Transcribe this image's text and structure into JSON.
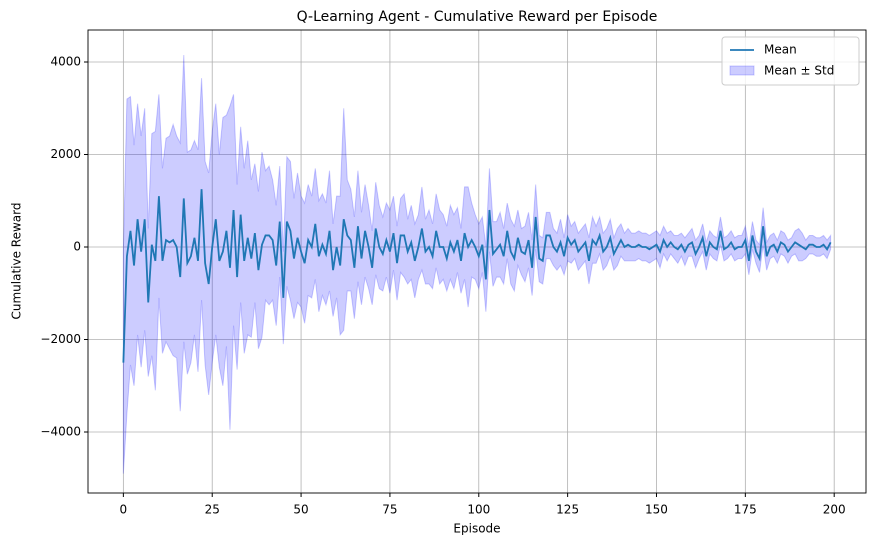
{
  "chart_data": {
    "type": "line",
    "title": "Q-Learning Agent - Cumulative Reward per Episode",
    "x_label": "Episode",
    "y_label": "Cumulative Reward",
    "x": [
      0,
      1,
      2,
      3,
      4,
      5,
      6,
      7,
      8,
      9,
      10,
      11,
      12,
      13,
      14,
      15,
      16,
      17,
      18,
      19,
      20,
      21,
      22,
      23,
      24,
      25,
      26,
      27,
      28,
      29,
      30,
      31,
      32,
      33,
      34,
      35,
      36,
      37,
      38,
      39,
      40,
      41,
      42,
      43,
      44,
      45,
      46,
      47,
      48,
      49,
      50,
      51,
      52,
      53,
      54,
      55,
      56,
      57,
      58,
      59,
      60,
      61,
      62,
      63,
      64,
      65,
      66,
      67,
      68,
      69,
      70,
      71,
      72,
      73,
      74,
      75,
      76,
      77,
      78,
      79,
      80,
      81,
      82,
      83,
      84,
      85,
      86,
      87,
      88,
      89,
      90,
      91,
      92,
      93,
      94,
      95,
      96,
      97,
      98,
      99,
      100,
      101,
      102,
      103,
      104,
      105,
      106,
      107,
      108,
      109,
      110,
      111,
      112,
      113,
      114,
      115,
      116,
      117,
      118,
      119,
      120,
      121,
      122,
      123,
      124,
      125,
      126,
      127,
      128,
      129,
      130,
      131,
      132,
      133,
      134,
      135,
      136,
      137,
      138,
      139,
      140,
      141,
      142,
      143,
      144,
      145,
      146,
      147,
      148,
      149,
      150,
      151,
      152,
      153,
      154,
      155,
      156,
      157,
      158,
      159,
      160,
      161,
      162,
      163,
      164,
      165,
      166,
      167,
      168,
      169,
      170,
      171,
      172,
      173,
      174,
      175,
      176,
      177,
      178,
      179,
      180,
      181,
      182,
      183,
      184,
      185,
      186,
      187,
      188,
      189,
      190,
      191,
      192,
      193,
      194,
      195,
      196,
      197,
      198,
      199
    ],
    "series": [
      {
        "name": "Mean",
        "color": "#1f77b4",
        "values": [
          -2500,
          -200,
          350,
          -400,
          600,
          -100,
          600,
          -1200,
          50,
          -300,
          1100,
          -300,
          150,
          100,
          150,
          0,
          -650,
          1050,
          -350,
          -200,
          200,
          -300,
          1250,
          -350,
          -800,
          0,
          600,
          -300,
          -100,
          350,
          -450,
          800,
          -650,
          700,
          -300,
          200,
          -250,
          300,
          -500,
          50,
          250,
          250,
          150,
          -400,
          550,
          -1100,
          550,
          350,
          -250,
          200,
          -100,
          -350,
          150,
          0,
          500,
          -200,
          50,
          -150,
          350,
          -500,
          0,
          -400,
          600,
          250,
          150,
          -450,
          450,
          -250,
          350,
          0,
          -450,
          400,
          0,
          -150,
          150,
          -100,
          300,
          -350,
          250,
          250,
          -100,
          100,
          -300,
          0,
          400,
          -100,
          0,
          -200,
          350,
          0,
          0,
          -250,
          100,
          -100,
          150,
          -300,
          300,
          0,
          150,
          0,
          -200,
          50,
          -700,
          800,
          -150,
          -50,
          50,
          -200,
          350,
          -100,
          -250,
          200,
          -100,
          -150,
          150,
          -450,
          650,
          -250,
          -300,
          250,
          250,
          0,
          -100,
          100,
          -200,
          200,
          50,
          150,
          -100,
          0,
          100,
          -300,
          150,
          50,
          250,
          -100,
          0,
          200,
          -150,
          0,
          150,
          0,
          50,
          0,
          0,
          50,
          0,
          0,
          -50,
          0,
          50,
          -100,
          150,
          0,
          100,
          0,
          -50,
          50,
          -100,
          50,
          100,
          -150,
          0,
          200,
          -200,
          100,
          0,
          -50,
          350,
          -50,
          0,
          100,
          -50,
          0,
          0,
          150,
          -300,
          250,
          -100,
          -250,
          450,
          -200,
          0,
          50,
          -100,
          100,
          50,
          -100,
          0,
          100,
          50,
          0,
          -50,
          50,
          50,
          0,
          0,
          50,
          -50,
          100
        ]
      },
      {
        "name": "Mean ± Std",
        "color": "#0000ff",
        "std": [
          2400,
          3400,
          2900,
          2600,
          2500,
          2500,
          2400,
          1600,
          2400,
          2800,
          2200,
          2000,
          2200,
          2300,
          2500,
          2400,
          2900,
          3100,
          2400,
          2300,
          2100,
          2400,
          2400,
          2200,
          2400,
          2500,
          2500,
          2300,
          2900,
          2500,
          3500,
          2500,
          2000,
          1900,
          2000,
          2100,
          1700,
          1500,
          1700,
          2000,
          1400,
          1500,
          1300,
          1300,
          1200,
          1000,
          1400,
          1500,
          1300,
          1400,
          1200,
          1300,
          1200,
          1100,
          1200,
          1200,
          1100,
          1100,
          1300,
          1000,
          1100,
          1500,
          2400,
          1200,
          1100,
          1100,
          1200,
          1000,
          1000,
          900,
          800,
          1000,
          900,
          800,
          800,
          900,
          800,
          800,
          800,
          900,
          700,
          800,
          800,
          700,
          900,
          700,
          800,
          700,
          800,
          800,
          700,
          700,
          800,
          800,
          700,
          700,
          1000,
          1300,
          800,
          700,
          700,
          600,
          700,
          900,
          700,
          600,
          700,
          600,
          600,
          700,
          700,
          600,
          500,
          600,
          600,
          600,
          700,
          500,
          500,
          500,
          500,
          400,
          400,
          500,
          400,
          500,
          400,
          400,
          400,
          400,
          400,
          500,
          500,
          400,
          400,
          400,
          400,
          400,
          350,
          400,
          350,
          300,
          350,
          300,
          300,
          300,
          300,
          300,
          300,
          300,
          300,
          350,
          300,
          300,
          250,
          250,
          300,
          250,
          300,
          250,
          300,
          300,
          250,
          300,
          300,
          250,
          250,
          250,
          300,
          250,
          250,
          250,
          250,
          250,
          250,
          300,
          300,
          300,
          250,
          300,
          400,
          300,
          250,
          250,
          250,
          250,
          250,
          250,
          200,
          250,
          350,
          300,
          200,
          200,
          200,
          200,
          200,
          200,
          200,
          150
        ]
      }
    ],
    "xlim": [
      -9.95,
      208.95
    ],
    "ylim": [
      -5319,
      4692
    ],
    "xticks": [
      0,
      25,
      50,
      75,
      100,
      125,
      150,
      175,
      200
    ],
    "yticks": [
      {
        "value": -4000,
        "label": "−4000"
      },
      {
        "value": -2000,
        "label": "−2000"
      },
      0,
      2000,
      4000
    ],
    "grid": true,
    "legend": "upper right"
  }
}
